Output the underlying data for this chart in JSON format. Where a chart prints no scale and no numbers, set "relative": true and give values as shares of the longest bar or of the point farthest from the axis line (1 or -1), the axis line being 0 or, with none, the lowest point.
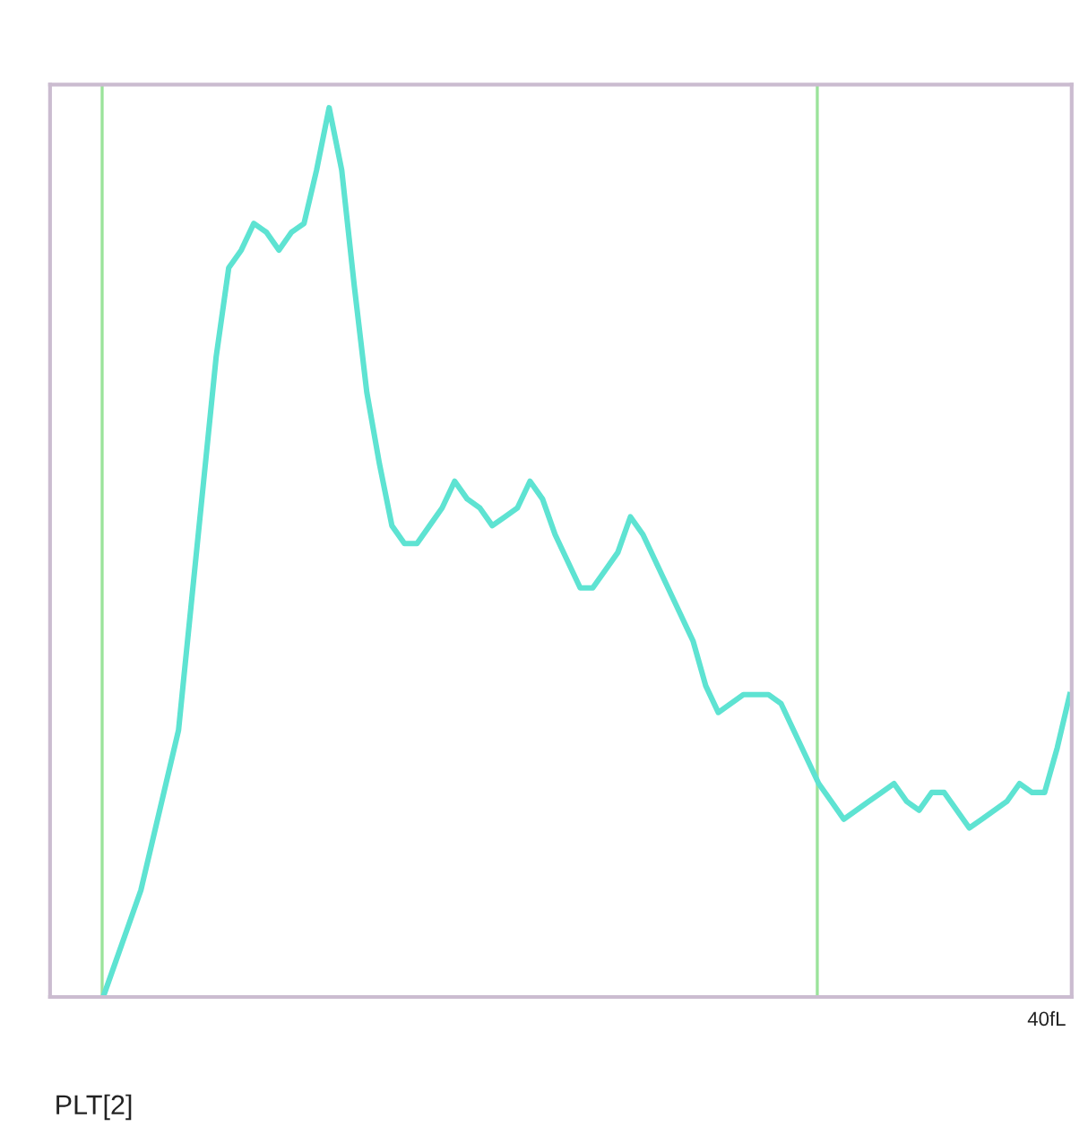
{
  "chart_data": {
    "type": "line",
    "relative": true,
    "categories": [
      null,
      null,
      null,
      null,
      null,
      null,
      null,
      null,
      null,
      null,
      null,
      null,
      null,
      null,
      null,
      null,
      null,
      null,
      null,
      null,
      null,
      null,
      null,
      null,
      null,
      null,
      null,
      null,
      null,
      null,
      null,
      null,
      null,
      null,
      null,
      null,
      null,
      null,
      null,
      null,
      null,
      null,
      null,
      null,
      null,
      null,
      null,
      null,
      null,
      null,
      null,
      null,
      null,
      null,
      null,
      null,
      null,
      null,
      null,
      null,
      null,
      null,
      null,
      null,
      null,
      null,
      null,
      null,
      null,
      null,
      null,
      null,
      null,
      null,
      null,
      null,
      null,
      null
    ],
    "series": [
      {
        "color": "#5ee3d2",
        "values": [
          0,
          0.04,
          0.08,
          0.12,
          0.18,
          0.24,
          0.3,
          0.44,
          0.58,
          0.72,
          0.82,
          0.84,
          0.87,
          0.86,
          0.84,
          0.86,
          0.87,
          0.93,
          1.0,
          0.93,
          0.8,
          0.68,
          0.6,
          0.53,
          0.51,
          0.51,
          0.53,
          0.55,
          0.58,
          0.56,
          0.55,
          0.53,
          0.54,
          0.55,
          0.58,
          0.56,
          0.52,
          0.49,
          0.46,
          0.46,
          0.48,
          0.5,
          0.54,
          0.52,
          0.49,
          0.46,
          0.43,
          0.4,
          0.35,
          0.32,
          0.33,
          0.34,
          0.34,
          0.34,
          0.33,
          0.3,
          0.27,
          0.24,
          0.22,
          0.2,
          0.21,
          0.22,
          0.23,
          0.24,
          0.22,
          0.21,
          0.23,
          0.23,
          0.21,
          0.19,
          0.2,
          0.21,
          0.22,
          0.24,
          0.23,
          0.23,
          0.28,
          0.34
        ]
      }
    ],
    "annotations": [
      "40fL",
      "PLT[2]"
    ],
    "grid": false,
    "legend": false,
    "marker": "none",
    "line_style": "solid"
  }
}
